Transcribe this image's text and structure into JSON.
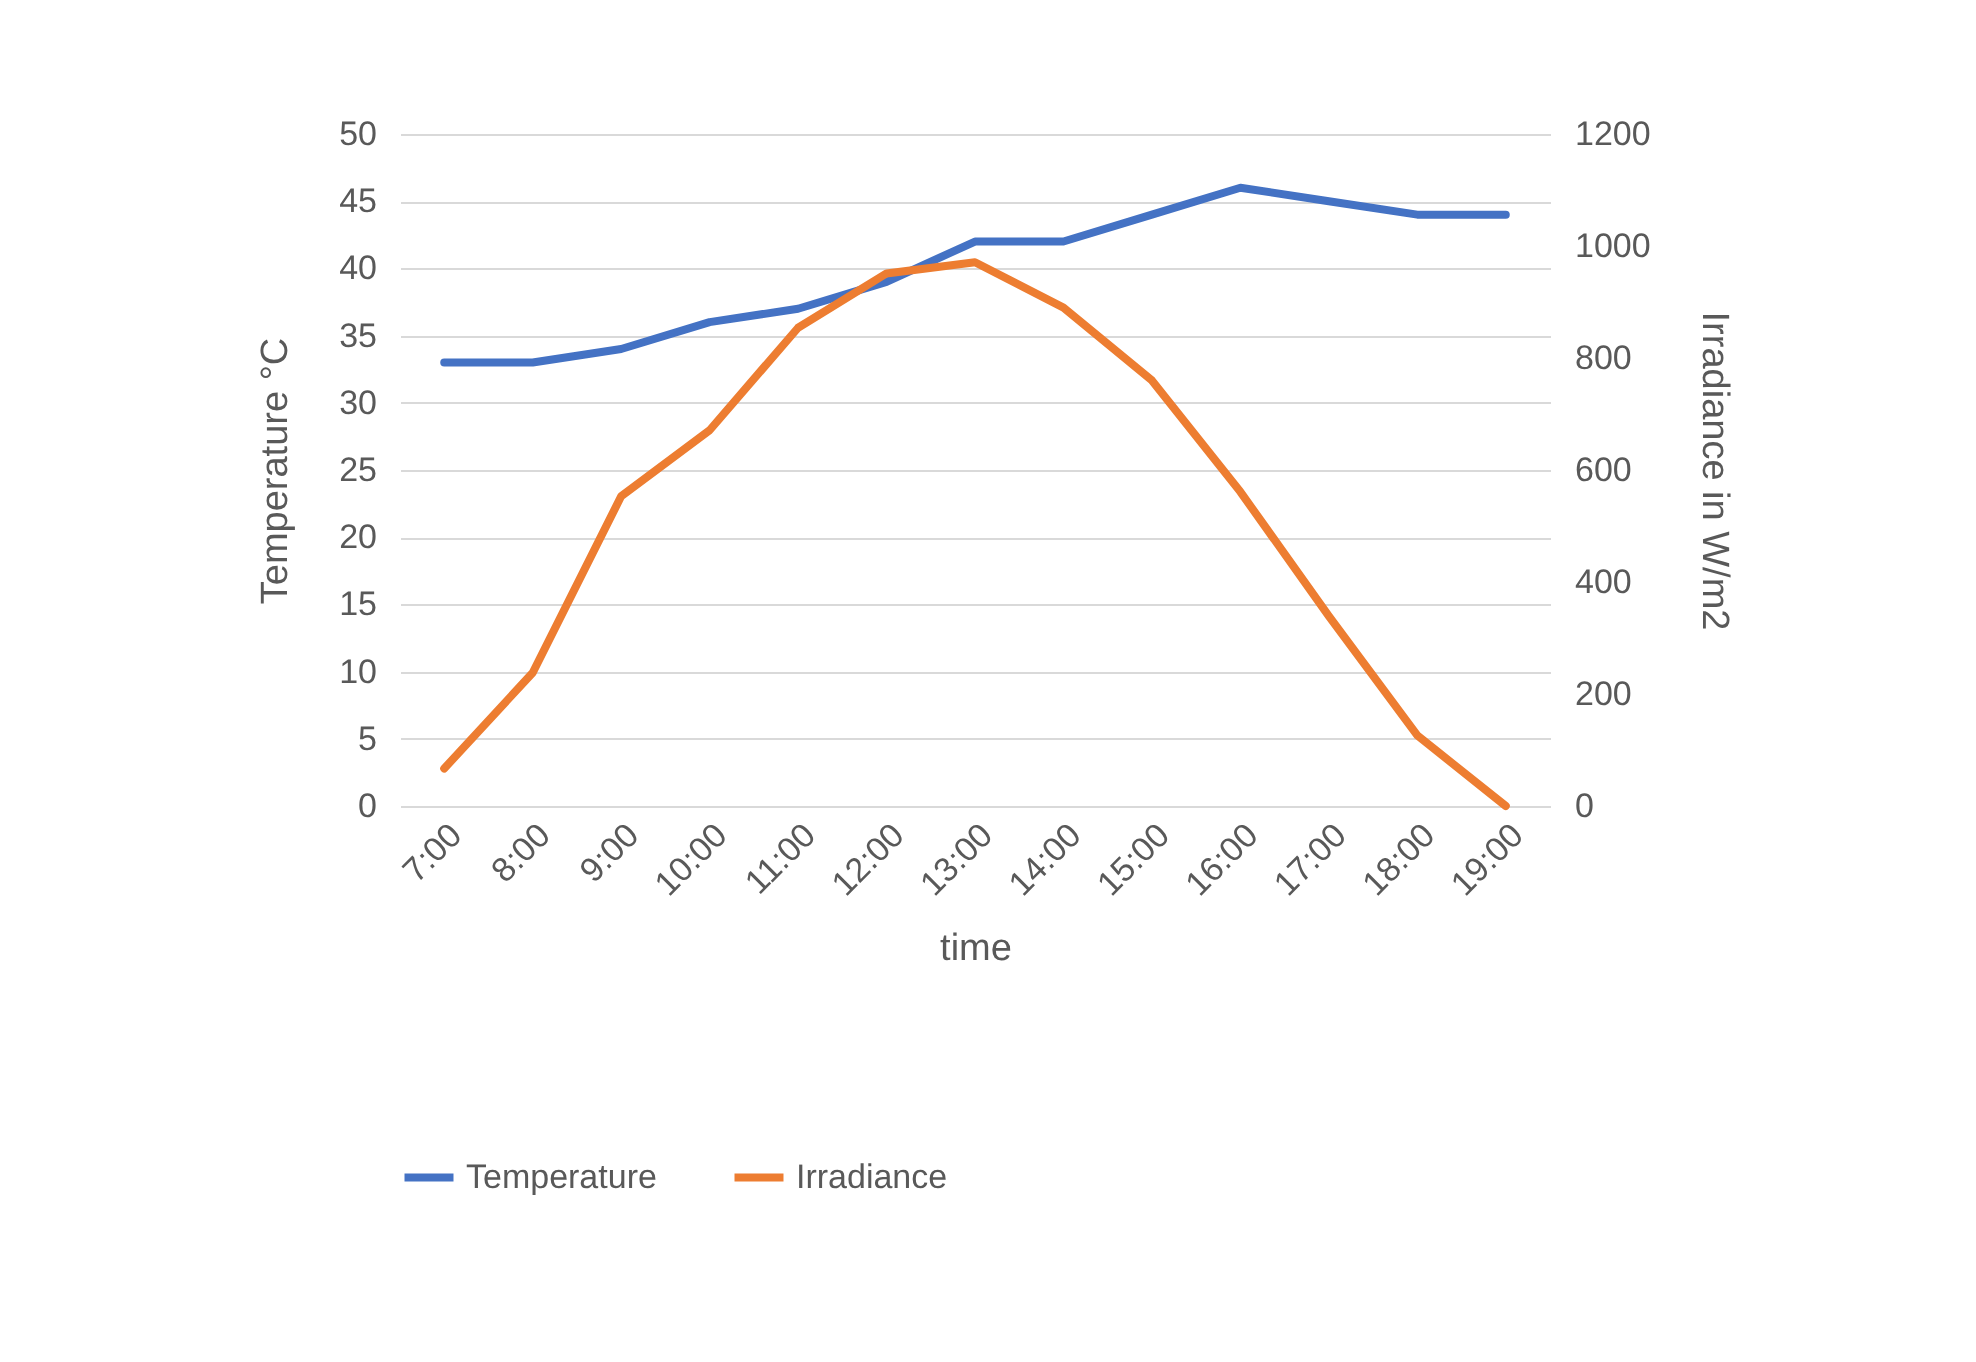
{
  "chart_data": {
    "type": "line",
    "xlabel": "time",
    "ylabel": "Temperature °C",
    "y2label": "Irradiance in W/m2",
    "categories": [
      "7:00",
      "8:00",
      "9:00",
      "10:00",
      "11:00",
      "12:00",
      "13:00",
      "14:00",
      "15:00",
      "16:00",
      "17:00",
      "18:00",
      "19:00"
    ],
    "series": [
      {
        "name": "Temperature",
        "color": "#4472c4",
        "values": [
          33,
          33,
          34,
          36,
          37,
          39,
          42,
          42,
          44,
          46,
          45,
          44,
          44
        ]
      },
      {
        "name": "Irradiance",
        "color": "#ed7d31",
        "axis": "y2",
        "values": [
          67,
          238,
          553,
          671,
          854,
          951,
          971,
          890,
          760,
          561,
          339,
          126,
          0
        ]
      }
    ],
    "ylim": [
      0,
      50
    ],
    "yticks": [
      0,
      5,
      10,
      15,
      20,
      25,
      30,
      35,
      40,
      45,
      50
    ],
    "y2lim": [
      0,
      1200
    ],
    "y2ticks": [
      0,
      200,
      400,
      600,
      800,
      {
        "value": 1000,
        "label": "1000"
      },
      {
        "value": 1200,
        "label": "1200"
      }
    ],
    "grid": "y",
    "legend": "bottom",
    "marker": "none",
    "line_style": "solid"
  }
}
